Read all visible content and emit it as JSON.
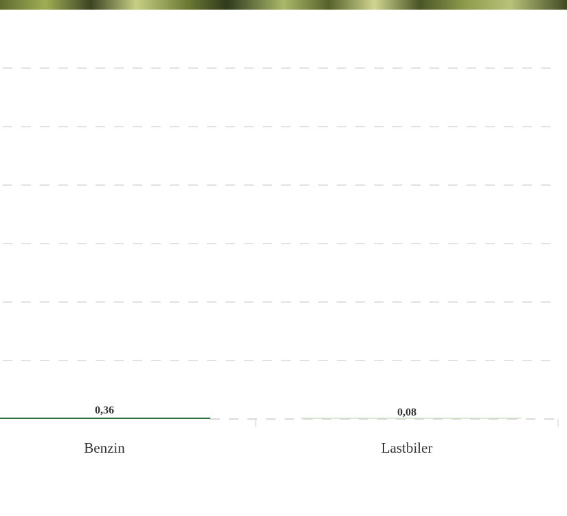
{
  "colors": {
    "grid": "#d9d9d9",
    "axis": "#cfcfcf",
    "series_primary": "#2e6b3a",
    "series_secondary": "#d6ead0",
    "text": "#333333"
  },
  "background_image": "foliage-photo",
  "chart_data": {
    "type": "bar",
    "orientation": "vertical",
    "categories": [
      "Benzin",
      "Lastbiler"
    ],
    "values": [
      0.36,
      0.08
    ],
    "data_labels": [
      "0,36",
      "0,08"
    ],
    "bar_colors": [
      "#2e6b3a",
      "#d6ead0"
    ],
    "title": "",
    "xlabel": "",
    "ylabel": "",
    "ylim": [
      0,
      140
    ],
    "grid": true,
    "grid_style": "dashed",
    "gridline_count": 6
  }
}
